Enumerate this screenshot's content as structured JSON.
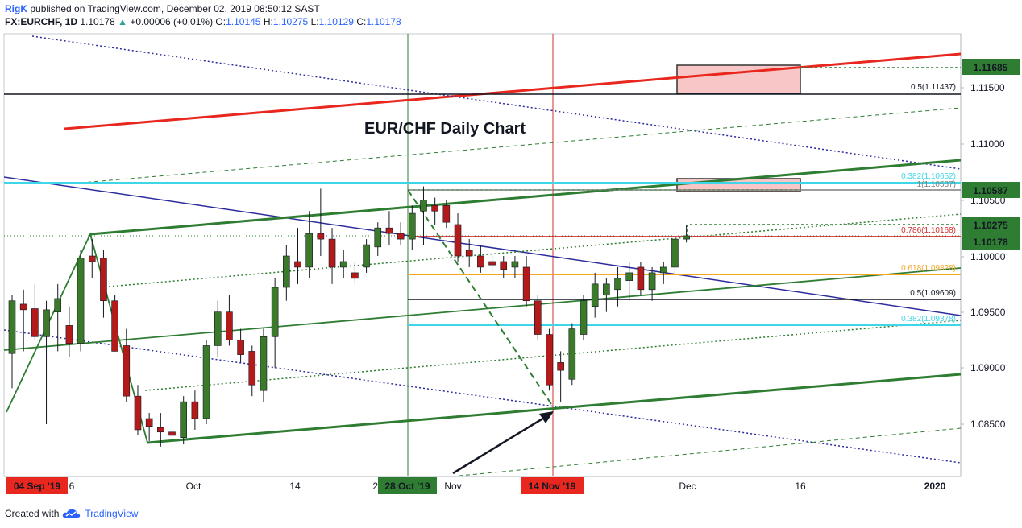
{
  "header": {
    "user": "RigK",
    "published": "published on TradingView.com, December 02, 2019 08:50:12 SAST",
    "symbol": "FX:EURCHF, 1D",
    "last": "1.10178",
    "change": "+0.00006 (+0.01%)",
    "o_label": "O:",
    "o_value": "1.10145",
    "h_label": "H:",
    "h_value": "1.10275",
    "l_label": "L:",
    "l_value": "1.10129",
    "c_label": "C:",
    "c_value": "1.10178"
  },
  "footer": {
    "created_with": "Created with",
    "brand": "TradingView"
  },
  "colors": {
    "up": "#3b7a2a",
    "down": "#b31b1b",
    "fib_red": "#d32f2f",
    "fib_orange": "#f5a623",
    "fib_cyan": "#3fd6e8",
    "channel_green": "#2e7d32",
    "trend_navy": "#2c2c9c"
  },
  "chart_data": {
    "type": "candlestick",
    "title": "EUR/CHF Daily Chart",
    "symbol": "FX:EURCHF",
    "timeframe": "1D",
    "ylim": [
      1.08,
      1.12
    ],
    "y_ticks": [
      "1.11500",
      "1.11000",
      "1.10500",
      "1.10000",
      "1.09500",
      "1.09000",
      "1.08500"
    ],
    "x_ticks": [
      "6",
      "Oct",
      "14",
      "23",
      "Nov",
      "Dec",
      "16",
      "2020"
    ],
    "date_markers": [
      "04 Sep '19",
      "28 Oct '19",
      "14 Nov '19"
    ],
    "price_badges": [
      {
        "label": "1.11685",
        "value": 1.11685
      },
      {
        "label": "1.10587",
        "value": 1.10587
      },
      {
        "label": "1.10275",
        "value": 1.10275
      },
      {
        "label": "1.10178",
        "value": 1.10178
      }
    ],
    "fib_levels": [
      {
        "label": "0.5(1.11437)",
        "value": 1.11437
      },
      {
        "label": "0.382(1.10652)",
        "value": 1.10652
      },
      {
        "label": "1(1.10587)",
        "value": 1.10587
      },
      {
        "label": "0.786(1.10168)",
        "value": 1.10168
      },
      {
        "label": "0.618(1.09828)",
        "value": 1.09828
      },
      {
        "label": "0.5(1.09609)",
        "value": 1.09609
      },
      {
        "label": "0.382(1.09378)",
        "value": 1.09378
      }
    ],
    "candles": [
      {
        "o": 1.0913,
        "h": 1.0965,
        "l": 1.0882,
        "c": 1.096
      },
      {
        "o": 1.0957,
        "h": 1.097,
        "l": 1.0915,
        "c": 1.0952
      },
      {
        "o": 1.0953,
        "h": 1.0975,
        "l": 1.0925,
        "c": 1.0928
      },
      {
        "o": 1.0928,
        "h": 1.096,
        "l": 1.085,
        "c": 1.0952
      },
      {
        "o": 1.095,
        "h": 1.0975,
        "l": 1.0915,
        "c": 1.0962
      },
      {
        "o": 1.0938,
        "h": 1.0955,
        "l": 1.091,
        "c": 1.0922
      },
      {
        "o": 1.0922,
        "h": 1.1005,
        "l": 1.0915,
        "c": 1.0998
      },
      {
        "o": 1.1,
        "h": 1.1015,
        "l": 1.098,
        "c": 1.0995
      },
      {
        "o": 1.0998,
        "h": 1.1005,
        "l": 1.0945,
        "c": 1.096
      },
      {
        "o": 1.096,
        "h": 1.0965,
        "l": 1.0915,
        "c": 1.0915
      },
      {
        "o": 1.092,
        "h": 1.0935,
        "l": 1.087,
        "c": 1.0875
      },
      {
        "o": 1.0875,
        "h": 1.0885,
        "l": 1.084,
        "c": 1.0845
      },
      {
        "o": 1.0855,
        "h": 1.086,
        "l": 1.0835,
        "c": 1.0848
      },
      {
        "o": 1.0847,
        "h": 1.086,
        "l": 1.083,
        "c": 1.0843
      },
      {
        "o": 1.0843,
        "h": 1.0855,
        "l": 1.0835,
        "c": 1.084
      },
      {
        "o": 1.0838,
        "h": 1.0875,
        "l": 1.0832,
        "c": 1.087
      },
      {
        "o": 1.087,
        "h": 1.088,
        "l": 1.0845,
        "c": 1.0855
      },
      {
        "o": 1.0855,
        "h": 1.0925,
        "l": 1.085,
        "c": 1.092
      },
      {
        "o": 1.092,
        "h": 1.096,
        "l": 1.091,
        "c": 1.095
      },
      {
        "o": 1.095,
        "h": 1.0965,
        "l": 1.092,
        "c": 1.0925
      },
      {
        "o": 1.0925,
        "h": 1.0935,
        "l": 1.0905,
        "c": 1.0912
      },
      {
        "o": 1.0915,
        "h": 1.092,
        "l": 1.0875,
        "c": 1.0885
      },
      {
        "o": 1.088,
        "h": 1.0935,
        "l": 1.087,
        "c": 1.0928
      },
      {
        "o": 1.0928,
        "h": 1.098,
        "l": 1.09,
        "c": 1.0972
      },
      {
        "o": 1.0972,
        "h": 1.101,
        "l": 1.096,
        "c": 1.1
      },
      {
        "o": 1.0995,
        "h": 1.1025,
        "l": 1.0975,
        "c": 1.099
      },
      {
        "o": 1.099,
        "h": 1.104,
        "l": 1.098,
        "c": 1.102
      },
      {
        "o": 1.102,
        "h": 1.106,
        "l": 1.1,
        "c": 1.1015
      },
      {
        "o": 1.1015,
        "h": 1.1025,
        "l": 1.0975,
        "c": 1.099
      },
      {
        "o": 1.099,
        "h": 1.1005,
        "l": 1.098,
        "c": 1.0995
      },
      {
        "o": 1.0985,
        "h": 1.0995,
        "l": 1.0975,
        "c": 1.098
      },
      {
        "o": 1.099,
        "h": 1.1015,
        "l": 1.0985,
        "c": 1.101
      },
      {
        "o": 1.1008,
        "h": 1.103,
        "l": 1.1,
        "c": 1.1025
      },
      {
        "o": 1.1025,
        "h": 1.104,
        "l": 1.101,
        "c": 1.102
      },
      {
        "o": 1.102,
        "h": 1.103,
        "l": 1.101,
        "c": 1.1015
      },
      {
        "o": 1.1015,
        "h": 1.1045,
        "l": 1.1005,
        "c": 1.1038
      },
      {
        "o": 1.104,
        "h": 1.1062,
        "l": 1.101,
        "c": 1.105
      },
      {
        "o": 1.1045,
        "h": 1.1052,
        "l": 1.1028,
        "c": 1.104
      },
      {
        "o": 1.1045,
        "h": 1.105,
        "l": 1.1025,
        "c": 1.103
      },
      {
        "o": 1.1028,
        "h": 1.1038,
        "l": 1.0995,
        "c": 1.1
      },
      {
        "o": 1.1005,
        "h": 1.1015,
        "l": 1.099,
        "c": 1.1
      },
      {
        "o": 1.1,
        "h": 1.101,
        "l": 1.0985,
        "c": 1.099
      },
      {
        "o": 1.0995,
        "h": 1.1,
        "l": 1.0985,
        "c": 1.0992
      },
      {
        "o": 1.0995,
        "h": 1.1,
        "l": 1.098,
        "c": 1.0988
      },
      {
        "o": 1.099,
        "h": 1.1,
        "l": 1.098,
        "c": 1.0995
      },
      {
        "o": 1.099,
        "h": 1.1,
        "l": 1.0955,
        "c": 1.096
      },
      {
        "o": 1.096,
        "h": 1.0965,
        "l": 1.0925,
        "c": 1.093
      },
      {
        "o": 1.093,
        "h": 1.0935,
        "l": 1.088,
        "c": 1.0885
      },
      {
        "o": 1.0905,
        "h": 1.0915,
        "l": 1.087,
        "c": 1.0898
      },
      {
        "o": 1.089,
        "h": 1.094,
        "l": 1.0885,
        "c": 1.0935
      },
      {
        "o": 1.093,
        "h": 1.0965,
        "l": 1.0925,
        "c": 1.096
      },
      {
        "o": 1.0955,
        "h": 1.0985,
        "l": 1.0945,
        "c": 1.0975
      },
      {
        "o": 1.0965,
        "h": 1.098,
        "l": 1.095,
        "c": 1.0975
      },
      {
        "o": 1.097,
        "h": 1.099,
        "l": 1.0955,
        "c": 1.098
      },
      {
        "o": 1.0978,
        "h": 1.0995,
        "l": 1.096,
        "c": 1.0985
      },
      {
        "o": 1.099,
        "h": 1.0995,
        "l": 1.0965,
        "c": 1.097
      },
      {
        "o": 1.097,
        "h": 1.099,
        "l": 1.096,
        "c": 1.0985
      },
      {
        "o": 1.0985,
        "h": 1.0995,
        "l": 1.0975,
        "c": 1.099
      },
      {
        "o": 1.099,
        "h": 1.102,
        "l": 1.0985,
        "c": 1.1015
      },
      {
        "o": 1.1015,
        "h": 1.1028,
        "l": 1.1012,
        "c": 1.1018
      }
    ]
  }
}
